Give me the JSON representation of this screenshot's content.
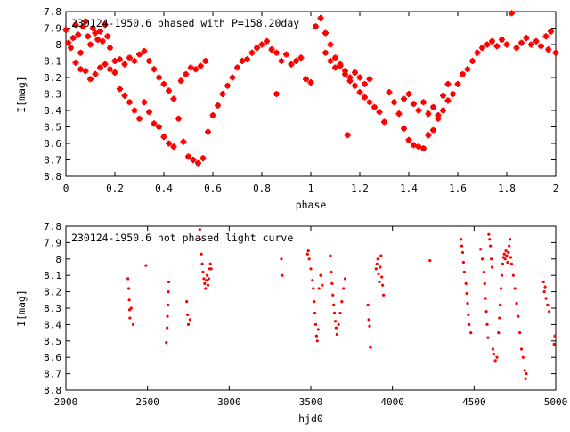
{
  "chart_data": [
    {
      "type": "scatter",
      "title": "230124-1950.6 phased with P=158.20day",
      "xlabel": "phase",
      "ylabel": "I[mag]",
      "xlim": [
        0,
        2
      ],
      "ylim": [
        7.8,
        8.8
      ],
      "y_inverted": true,
      "x_ticks": [
        "0",
        "0.2",
        "0.4",
        "0.6",
        "0.8",
        "1",
        "1.2",
        "1.4",
        "1.6",
        "1.8",
        "2"
      ],
      "y_ticks": [
        "7.8",
        "7.9",
        "8",
        "8.1",
        "8.2",
        "8.3",
        "8.4",
        "8.5",
        "8.6",
        "8.7",
        "8.8"
      ],
      "marker": "star",
      "color": "#ff0000",
      "points": [
        [
          0.0,
          7.91
        ],
        [
          0.01,
          7.99
        ],
        [
          0.02,
          8.02
        ],
        [
          0.03,
          7.96
        ],
        [
          0.04,
          7.88
        ],
        [
          0.05,
          7.94
        ],
        [
          0.06,
          8.05
        ],
        [
          0.07,
          7.89
        ],
        [
          0.08,
          7.86
        ],
        [
          0.09,
          7.95
        ],
        [
          0.1,
          8.0
        ],
        [
          0.11,
          7.9
        ],
        [
          0.12,
          7.93
        ],
        [
          0.13,
          7.97
        ],
        [
          0.14,
          7.92
        ],
        [
          0.15,
          7.98
        ],
        [
          0.16,
          7.88
        ],
        [
          0.17,
          7.95
        ],
        [
          0.18,
          8.02
        ],
        [
          0.04,
          8.11
        ],
        [
          0.06,
          8.15
        ],
        [
          0.08,
          8.16
        ],
        [
          0.1,
          8.21
        ],
        [
          0.12,
          8.18
        ],
        [
          0.14,
          8.14
        ],
        [
          0.16,
          8.12
        ],
        [
          0.18,
          8.15
        ],
        [
          0.2,
          8.17
        ],
        [
          0.22,
          8.27
        ],
        [
          0.24,
          8.31
        ],
        [
          0.26,
          8.35
        ],
        [
          0.28,
          8.4
        ],
        [
          0.3,
          8.45
        ],
        [
          0.32,
          8.35
        ],
        [
          0.34,
          8.41
        ],
        [
          0.36,
          8.48
        ],
        [
          0.38,
          8.5
        ],
        [
          0.4,
          8.56
        ],
        [
          0.42,
          8.6
        ],
        [
          0.44,
          8.62
        ],
        [
          0.2,
          8.1
        ],
        [
          0.22,
          8.09
        ],
        [
          0.24,
          8.12
        ],
        [
          0.26,
          8.08
        ],
        [
          0.28,
          8.1
        ],
        [
          0.3,
          8.06
        ],
        [
          0.32,
          8.04
        ],
        [
          0.34,
          8.1
        ],
        [
          0.36,
          8.15
        ],
        [
          0.38,
          8.2
        ],
        [
          0.4,
          8.24
        ],
        [
          0.42,
          8.28
        ],
        [
          0.44,
          8.33
        ],
        [
          0.46,
          8.45
        ],
        [
          0.48,
          8.59
        ],
        [
          0.5,
          8.68
        ],
        [
          0.52,
          8.7
        ],
        [
          0.54,
          8.72
        ],
        [
          0.56,
          8.69
        ],
        [
          0.58,
          8.53
        ],
        [
          0.47,
          8.22
        ],
        [
          0.49,
          8.18
        ],
        [
          0.51,
          8.14
        ],
        [
          0.53,
          8.15
        ],
        [
          0.55,
          8.13
        ],
        [
          0.57,
          8.1
        ],
        [
          0.6,
          8.43
        ],
        [
          0.62,
          8.37
        ],
        [
          0.64,
          8.3
        ],
        [
          0.66,
          8.25
        ],
        [
          0.68,
          8.2
        ],
        [
          0.7,
          8.14
        ],
        [
          0.72,
          8.1
        ],
        [
          0.74,
          8.09
        ],
        [
          0.76,
          8.05
        ],
        [
          0.78,
          8.02
        ],
        [
          0.8,
          8.0
        ],
        [
          0.82,
          7.98
        ],
        [
          0.84,
          8.03
        ],
        [
          0.86,
          8.05
        ],
        [
          0.86,
          8.3
        ],
        [
          0.88,
          8.1
        ],
        [
          0.9,
          8.06
        ],
        [
          0.92,
          8.12
        ],
        [
          0.94,
          8.1
        ],
        [
          0.96,
          8.08
        ],
        [
          0.98,
          8.21
        ],
        [
          1.0,
          8.23
        ],
        [
          1.02,
          7.89
        ],
        [
          1.04,
          7.84
        ],
        [
          1.06,
          7.93
        ],
        [
          1.08,
          8.0
        ],
        [
          1.1,
          8.08
        ],
        [
          1.12,
          8.12
        ],
        [
          1.14,
          8.16
        ],
        [
          1.16,
          8.2
        ],
        [
          1.18,
          8.25
        ],
        [
          1.2,
          8.29
        ],
        [
          1.22,
          8.32
        ],
        [
          1.24,
          8.35
        ],
        [
          1.06,
          8.05
        ],
        [
          1.08,
          8.1
        ],
        [
          1.1,
          8.14
        ],
        [
          1.12,
          8.13
        ],
        [
          1.14,
          8.18
        ],
        [
          1.16,
          8.22
        ],
        [
          1.18,
          8.17
        ],
        [
          1.2,
          8.2
        ],
        [
          1.22,
          8.24
        ],
        [
          1.24,
          8.21
        ],
        [
          1.26,
          8.38
        ],
        [
          1.28,
          8.41
        ],
        [
          1.3,
          8.47
        ],
        [
          1.32,
          8.29
        ],
        [
          1.34,
          8.35
        ],
        [
          1.36,
          8.42
        ],
        [
          1.38,
          8.51
        ],
        [
          1.4,
          8.58
        ],
        [
          1.42,
          8.61
        ],
        [
          1.44,
          8.62
        ],
        [
          1.46,
          8.63
        ],
        [
          1.48,
          8.55
        ],
        [
          1.5,
          8.52
        ],
        [
          1.52,
          8.45
        ],
        [
          1.54,
          8.4
        ],
        [
          1.56,
          8.34
        ],
        [
          1.58,
          8.3
        ],
        [
          1.6,
          8.24
        ],
        [
          1.62,
          8.18
        ],
        [
          1.64,
          8.15
        ],
        [
          1.38,
          8.33
        ],
        [
          1.4,
          8.3
        ],
        [
          1.42,
          8.36
        ],
        [
          1.44,
          8.4
        ],
        [
          1.46,
          8.35
        ],
        [
          1.48,
          8.42
        ],
        [
          1.5,
          8.38
        ],
        [
          1.52,
          8.43
        ],
        [
          1.54,
          8.31
        ],
        [
          1.56,
          8.24
        ],
        [
          1.15,
          8.55
        ],
        [
          1.66,
          8.1
        ],
        [
          1.68,
          8.05
        ],
        [
          1.7,
          8.02
        ],
        [
          1.72,
          8.0
        ],
        [
          1.74,
          7.98
        ],
        [
          1.76,
          8.01
        ],
        [
          1.78,
          7.97
        ],
        [
          1.8,
          8.0
        ],
        [
          1.82,
          7.81
        ],
        [
          1.84,
          8.02
        ],
        [
          1.86,
          7.99
        ],
        [
          1.88,
          7.96
        ],
        [
          1.9,
          8.0
        ],
        [
          1.92,
          7.98
        ],
        [
          1.94,
          8.01
        ],
        [
          1.96,
          7.95
        ],
        [
          1.98,
          7.92
        ],
        [
          2.0,
          8.05
        ],
        [
          1.97,
          8.03
        ]
      ]
    },
    {
      "type": "scatter",
      "title": "230124-1950.6 not phased light curve",
      "xlabel": "hjd0",
      "ylabel": "I[mag]",
      "xlim": [
        2000,
        5000
      ],
      "ylim": [
        7.8,
        8.8
      ],
      "y_inverted": true,
      "x_ticks": [
        "2000",
        "2500",
        "3000",
        "3500",
        "4000",
        "4500",
        "5000"
      ],
      "y_ticks": [
        "7.8",
        "7.9",
        "8",
        "8.1",
        "8.2",
        "8.3",
        "8.4",
        "8.5",
        "8.6",
        "8.7",
        "8.8"
      ],
      "marker": "dot",
      "color": "#ff0000",
      "points": [
        [
          2380,
          8.12
        ],
        [
          2385,
          8.18
        ],
        [
          2388,
          8.25
        ],
        [
          2390,
          8.31
        ],
        [
          2392,
          8.36
        ],
        [
          2400,
          8.3
        ],
        [
          2412,
          8.4
        ],
        [
          2490,
          8.04
        ],
        [
          2615,
          8.51
        ],
        [
          2620,
          8.42
        ],
        [
          2622,
          8.35
        ],
        [
          2625,
          8.28
        ],
        [
          2628,
          8.2
        ],
        [
          2630,
          8.14
        ],
        [
          2740,
          8.26
        ],
        [
          2745,
          8.34
        ],
        [
          2750,
          8.4
        ],
        [
          2760,
          8.37
        ],
        [
          2820,
          7.82
        ],
        [
          2822,
          7.88
        ],
        [
          2830,
          7.97
        ],
        [
          2835,
          8.03
        ],
        [
          2840,
          8.08
        ],
        [
          2845,
          8.12
        ],
        [
          2850,
          8.15
        ],
        [
          2855,
          8.18
        ],
        [
          2860,
          8.13
        ],
        [
          2865,
          8.1
        ],
        [
          2870,
          8.16
        ],
        [
          2875,
          8.12
        ],
        [
          2880,
          8.06
        ],
        [
          2885,
          8.03
        ],
        [
          2890,
          8.06
        ],
        [
          3320,
          8.0
        ],
        [
          3325,
          8.1
        ],
        [
          3480,
          7.97
        ],
        [
          3485,
          7.95
        ],
        [
          3490,
          8.0
        ],
        [
          3500,
          8.06
        ],
        [
          3510,
          8.13
        ],
        [
          3515,
          8.18
        ],
        [
          3520,
          8.26
        ],
        [
          3525,
          8.33
        ],
        [
          3530,
          8.4
        ],
        [
          3535,
          8.47
        ],
        [
          3540,
          8.5
        ],
        [
          3545,
          8.43
        ],
        [
          3550,
          8.18
        ],
        [
          3560,
          8.1
        ],
        [
          3570,
          8.16
        ],
        [
          3620,
          7.98
        ],
        [
          3625,
          8.08
        ],
        [
          3630,
          8.15
        ],
        [
          3635,
          8.22
        ],
        [
          3640,
          8.28
        ],
        [
          3645,
          8.33
        ],
        [
          3650,
          8.38
        ],
        [
          3655,
          8.42
        ],
        [
          3660,
          8.46
        ],
        [
          3670,
          8.4
        ],
        [
          3680,
          8.33
        ],
        [
          3690,
          8.26
        ],
        [
          3700,
          8.18
        ],
        [
          3710,
          8.12
        ],
        [
          3850,
          8.28
        ],
        [
          3855,
          8.37
        ],
        [
          3860,
          8.41
        ],
        [
          3865,
          8.54
        ],
        [
          3900,
          8.06
        ],
        [
          3905,
          8.03
        ],
        [
          3910,
          8.0
        ],
        [
          3915,
          8.09
        ],
        [
          3920,
          8.14
        ],
        [
          3925,
          8.05
        ],
        [
          3930,
          7.98
        ],
        [
          3935,
          8.11
        ],
        [
          3940,
          8.16
        ],
        [
          3945,
          8.22
        ],
        [
          4230,
          8.01
        ],
        [
          4420,
          7.88
        ],
        [
          4425,
          7.92
        ],
        [
          4430,
          7.96
        ],
        [
          4435,
          8.02
        ],
        [
          4440,
          8.08
        ],
        [
          4450,
          8.15
        ],
        [
          4455,
          8.21
        ],
        [
          4460,
          8.27
        ],
        [
          4465,
          8.34
        ],
        [
          4470,
          8.4
        ],
        [
          4480,
          8.45
        ],
        [
          4540,
          7.94
        ],
        [
          4550,
          8.0
        ],
        [
          4560,
          8.08
        ],
        [
          4565,
          8.15
        ],
        [
          4570,
          8.24
        ],
        [
          4575,
          8.32
        ],
        [
          4580,
          8.4
        ],
        [
          4585,
          8.48
        ],
        [
          4590,
          7.85
        ],
        [
          4595,
          7.88
        ],
        [
          4600,
          7.92
        ],
        [
          4605,
          8.0
        ],
        [
          4610,
          8.05
        ],
        [
          4615,
          8.55
        ],
        [
          4620,
          8.58
        ],
        [
          4630,
          8.62
        ],
        [
          4640,
          8.6
        ],
        [
          4650,
          8.45
        ],
        [
          4655,
          8.36
        ],
        [
          4660,
          8.28
        ],
        [
          4665,
          8.18
        ],
        [
          4670,
          8.1
        ],
        [
          4675,
          8.03
        ],
        [
          4680,
          7.99
        ],
        [
          4685,
          7.97
        ],
        [
          4690,
          8.0
        ],
        [
          4695,
          7.95
        ],
        [
          4700,
          7.98
        ],
        [
          4705,
          8.02
        ],
        [
          4710,
          7.96
        ],
        [
          4715,
          7.92
        ],
        [
          4720,
          7.88
        ],
        [
          4725,
          7.99
        ],
        [
          4730,
          8.03
        ],
        [
          4740,
          8.1
        ],
        [
          4750,
          8.18
        ],
        [
          4760,
          8.27
        ],
        [
          4770,
          8.35
        ],
        [
          4780,
          8.45
        ],
        [
          4790,
          8.55
        ],
        [
          4800,
          8.6
        ],
        [
          4810,
          8.68
        ],
        [
          4815,
          8.73
        ],
        [
          4820,
          8.7
        ],
        [
          4925,
          8.14
        ],
        [
          4930,
          8.2
        ],
        [
          4935,
          8.17
        ],
        [
          4940,
          8.24
        ],
        [
          4950,
          8.28
        ],
        [
          4960,
          8.32
        ],
        [
          4990,
          8.52
        ],
        [
          4995,
          8.47
        ]
      ]
    }
  ]
}
